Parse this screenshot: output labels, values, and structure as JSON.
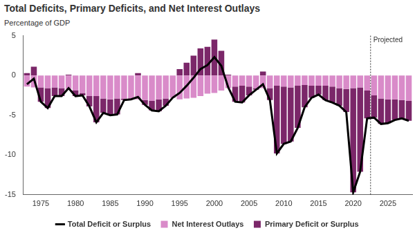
{
  "chart_data": {
    "type": "bar",
    "title": "Total Deficits, Primary Deficits, and Net Interest Outlays",
    "y_label": "Percentage of GDP",
    "x": [
      1973,
      1974,
      1975,
      1976,
      1977,
      1978,
      1979,
      1980,
      1981,
      1982,
      1983,
      1984,
      1985,
      1986,
      1987,
      1988,
      1989,
      1990,
      1991,
      1992,
      1993,
      1994,
      1995,
      1996,
      1997,
      1998,
      1999,
      2000,
      2001,
      2002,
      2003,
      2004,
      2005,
      2006,
      2007,
      2008,
      2009,
      2010,
      2011,
      2012,
      2013,
      2014,
      2015,
      2016,
      2017,
      2018,
      2019,
      2020,
      2021,
      2022,
      2023,
      2024,
      2025,
      2026,
      2027,
      2028
    ],
    "series": [
      {
        "name": "Total Deficit or Surplus",
        "type": "line",
        "color": "#000000",
        "values": [
          -1.1,
          -0.4,
          -3.3,
          -4.1,
          -2.6,
          -2.6,
          -1.6,
          -2.6,
          -2.5,
          -3.9,
          -5.9,
          -4.7,
          -5,
          -4.9,
          -3.1,
          -3,
          -2.7,
          -3.7,
          -4.4,
          -4.5,
          -3.8,
          -2.8,
          -2.2,
          -1.3,
          -0.3,
          0.8,
          1.3,
          2.3,
          1.2,
          -1.5,
          -3.3,
          -3.4,
          -2.5,
          -1.8,
          -1.1,
          -3.1,
          -9.8,
          -8.6,
          -8.3,
          -6.6,
          -4,
          -2.8,
          -2.4,
          -3.1,
          -3.4,
          -3.8,
          -4.6,
          -14.7,
          -12.1,
          -5.4,
          -5.3,
          -6.1,
          -6,
          -5.6,
          -5.4,
          -5.7
        ]
      },
      {
        "name": "Net Interest Outlays",
        "type": "bar",
        "color": "#d98bc9",
        "values": [
          -1.4,
          -1.5,
          -1.5,
          -1.6,
          -1.5,
          -1.6,
          -1.7,
          -1.9,
          -2.2,
          -2.6,
          -2.6,
          -2.9,
          -3,
          -2.9,
          -2.9,
          -2.9,
          -3,
          -3.1,
          -3.2,
          -3,
          -2.9,
          -2.8,
          -3,
          -2.9,
          -2.8,
          -2.6,
          -2.3,
          -2.2,
          -1.9,
          -1.6,
          -1.4,
          -1.3,
          -1.4,
          -1.6,
          -1.6,
          -1.6,
          -1.3,
          -1.4,
          -1.5,
          -1.3,
          -1.2,
          -1.3,
          -1.3,
          -1.3,
          -1.4,
          -1.6,
          -1.7,
          -1.6,
          -1.5,
          -1.9,
          -2.5,
          -2.9,
          -3,
          -3,
          -3.1,
          -3.2
        ]
      },
      {
        "name": "Primary Deficit or Surplus",
        "type": "bar",
        "color": "#7b2769",
        "values": [
          0.3,
          1.1,
          -1.8,
          -2.5,
          -1.1,
          -1,
          0.1,
          -0.7,
          -0.3,
          -1.3,
          -3.3,
          -1.8,
          -2,
          -2,
          -0.2,
          -0.1,
          0.3,
          -0.6,
          -1.2,
          -1.5,
          -0.9,
          0,
          0.8,
          1.6,
          2.5,
          3.4,
          3.6,
          4.5,
          3.1,
          0.1,
          -1.9,
          -2.1,
          -1.1,
          -0.2,
          0.5,
          -1.5,
          -8.5,
          -7.2,
          -6.8,
          -5.3,
          -2.8,
          -1.5,
          -1.1,
          -1.8,
          -2,
          -2.2,
          -2.9,
          -13.1,
          -10.6,
          -3.5,
          -2.8,
          -3.2,
          -3,
          -2.6,
          -2.3,
          -2.5
        ]
      }
    ],
    "stacked": true,
    "xlim": [
      1972.5,
      2028.5
    ],
    "xticks": [
      1975,
      1980,
      1985,
      1990,
      1995,
      2000,
      2005,
      2010,
      2015,
      2020,
      2025
    ],
    "ylim": [
      -15,
      5
    ],
    "yticks": [
      -15,
      -10,
      -5,
      0,
      5
    ],
    "grid": false,
    "legend": "bottom",
    "annotations": [
      {
        "text": "Projected",
        "x": 2022.5,
        "line_style": "dashed"
      }
    ]
  }
}
